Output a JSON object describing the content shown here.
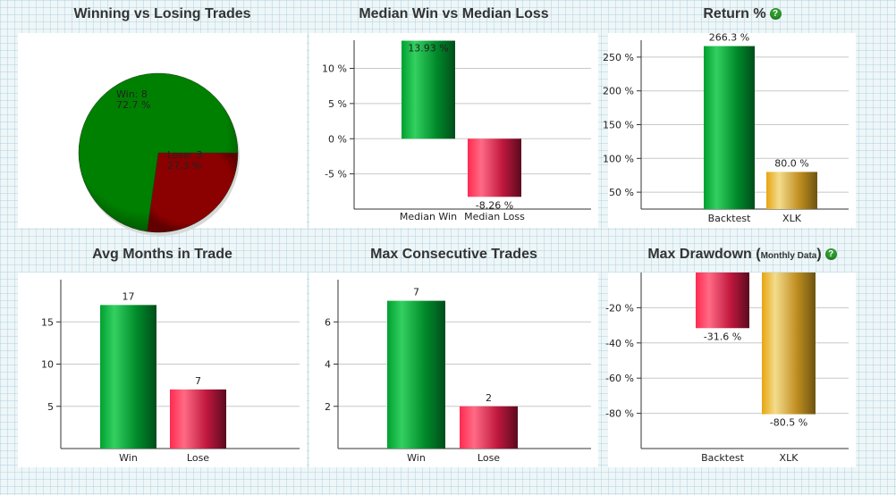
{
  "titles": {
    "winning_vs_losing": "Winning vs Losing Trades",
    "median": "Median Win vs Median Loss",
    "return": "Return %",
    "avg_months": "Avg Months in Trade",
    "max_consecutive": "Max Consecutive Trades",
    "max_drawdown": "Max Drawdown (",
    "max_drawdown_small": "Monthly Data",
    "max_drawdown_close": ")"
  },
  "help_glyph": "?",
  "colors": {
    "green": "#008000",
    "red": "#8b0000",
    "gold": "#d4a017",
    "pink": "#e0204c"
  },
  "chart_data": [
    {
      "id": "pie",
      "type": "pie",
      "title": "Winning vs Losing Trades",
      "slices": [
        {
          "label": "Win: 8",
          "percent_label": "72.7 %",
          "value": 8,
          "color": "#008000"
        },
        {
          "label": "Lose: 3",
          "percent_label": "27.3 %",
          "value": 3,
          "color": "#8b0000"
        }
      ]
    },
    {
      "id": "median",
      "type": "bar",
      "title": "Median Win vs Median Loss",
      "categories": [
        "Median Win",
        "Median Loss"
      ],
      "values": [
        13.93,
        -8.26
      ],
      "value_labels": [
        "13.93 %",
        "-8.26 %"
      ],
      "colors": [
        "green",
        "pink"
      ],
      "ylim": [
        -10,
        14
      ],
      "yticks": [
        10,
        5,
        0,
        -5
      ],
      "ytick_labels": [
        "10 %",
        "5 %",
        "0 %",
        "-5 %"
      ],
      "grid": true
    },
    {
      "id": "return",
      "type": "bar",
      "title": "Return %",
      "categories": [
        "Backtest",
        "XLK"
      ],
      "values": [
        266.3,
        80.0
      ],
      "value_labels": [
        "266.3 %",
        "80.0 %"
      ],
      "colors": [
        "green",
        "gold"
      ],
      "ylim": [
        25,
        275
      ],
      "yticks": [
        250,
        200,
        150,
        100,
        50
      ],
      "ytick_labels": [
        "250 %",
        "200 %",
        "150 %",
        "100 %",
        "50 %"
      ],
      "grid": true
    },
    {
      "id": "avg_months",
      "type": "bar",
      "title": "Avg Months in Trade",
      "categories": [
        "Win",
        "Lose"
      ],
      "values": [
        17,
        7
      ],
      "value_labels": [
        "17",
        "7"
      ],
      "colors": [
        "green",
        "pink"
      ],
      "ylim": [
        0,
        20
      ],
      "yticks": [
        15,
        10,
        5
      ],
      "ytick_labels": [
        "15",
        "10",
        "5"
      ],
      "grid": true
    },
    {
      "id": "max_consecutive",
      "type": "bar",
      "title": "Max Consecutive Trades",
      "categories": [
        "Win",
        "Lose"
      ],
      "values": [
        7,
        2
      ],
      "value_labels": [
        "7",
        "2"
      ],
      "colors": [
        "green",
        "pink"
      ],
      "ylim": [
        0,
        8
      ],
      "yticks": [
        6,
        4,
        2
      ],
      "ytick_labels": [
        "6",
        "4",
        "2"
      ],
      "grid": true
    },
    {
      "id": "max_drawdown",
      "type": "bar",
      "title": "Max Drawdown (Monthly Data)",
      "categories": [
        "Backtest",
        "XLK"
      ],
      "values": [
        -31.6,
        -80.5
      ],
      "value_labels": [
        "-31.6 %",
        "-80.5 %"
      ],
      "colors": [
        "pink",
        "gold"
      ],
      "ylim": [
        -100,
        0
      ],
      "yticks": [
        -20,
        -40,
        -60,
        -80
      ],
      "ytick_labels": [
        "-20 %",
        "-40 %",
        "-60 %",
        "-80 %"
      ],
      "grid": true
    }
  ]
}
